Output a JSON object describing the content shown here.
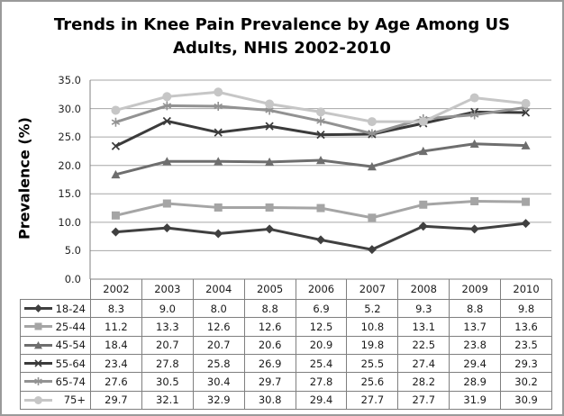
{
  "window": {
    "background": "#ffffff",
    "border_color": "#9a9a9a"
  },
  "colors": {
    "gridline": "#a6a6a6",
    "axis": "#808080",
    "table_border": "#7f7f7f",
    "text": "#1a1a1a",
    "title": "#000000"
  },
  "chart_data": {
    "type": "line",
    "title": "Trends in Knee Pain Prevalence by Age Among US Adults, NHIS 2002-2010",
    "title_lines": [
      "Trends in Knee Pain Prevalence by Age Among US",
      "Adults, NHIS 2002-2010"
    ],
    "xlabel": "",
    "ylabel": "Prevalence (%)",
    "ylim": [
      0,
      35
    ],
    "ytick_step": 5,
    "yticks": [
      "0.0",
      "5.0",
      "10.0",
      "15.0",
      "20.0",
      "25.0",
      "30.0",
      "35.0"
    ],
    "grid": true,
    "legend_position": "data-table-left-column",
    "categories": [
      "2002",
      "2003",
      "2004",
      "2005",
      "2006",
      "2007",
      "2008",
      "2009",
      "2010"
    ],
    "series": [
      {
        "name": "18-24",
        "marker": "diamond",
        "color": "#404040",
        "values": [
          8.3,
          9.0,
          8.0,
          8.8,
          6.9,
          5.2,
          9.3,
          8.8,
          9.8
        ]
      },
      {
        "name": "25-44",
        "marker": "square",
        "color": "#a5a5a5",
        "values": [
          11.2,
          13.3,
          12.6,
          12.6,
          12.5,
          10.8,
          13.1,
          13.7,
          13.6
        ]
      },
      {
        "name": "45-54",
        "marker": "triangle",
        "color": "#6e6e6e",
        "values": [
          18.4,
          20.7,
          20.7,
          20.6,
          20.9,
          19.8,
          22.5,
          23.8,
          23.5
        ]
      },
      {
        "name": "55-64",
        "marker": "x",
        "color": "#3b3b3b",
        "values": [
          23.4,
          27.8,
          25.8,
          26.9,
          25.4,
          25.5,
          27.4,
          29.4,
          29.3
        ]
      },
      {
        "name": "65-74",
        "marker": "asterisk",
        "color": "#929292",
        "values": [
          27.6,
          30.5,
          30.4,
          29.7,
          27.8,
          25.6,
          28.2,
          28.9,
          30.2
        ]
      },
      {
        "name": "75+",
        "marker": "circle",
        "color": "#c6c6c6",
        "values": [
          29.7,
          32.1,
          32.9,
          30.8,
          29.4,
          27.7,
          27.7,
          31.9,
          30.9
        ]
      }
    ]
  }
}
